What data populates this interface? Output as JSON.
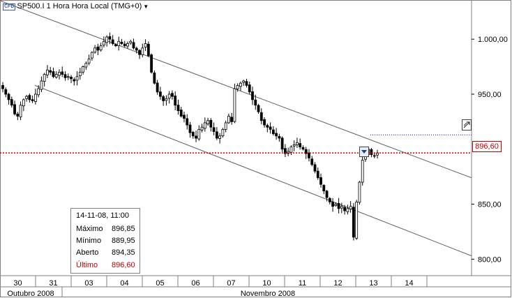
{
  "header": {
    "badge": "CFD",
    "instrument": "SP500.I",
    "period": "1 Hora",
    "timezone": "Hora Local (TMG+0)"
  },
  "last_price_tag": "896,60",
  "ohlc": {
    "datetime": "14-11-08, 11:00",
    "max_label": "Máximo",
    "max": "896,85",
    "min_label": "Mínimo",
    "min": "889,95",
    "open_label": "Aberto",
    "open": "894,35",
    "last_label": "Último",
    "last": "896,60"
  },
  "colors": {
    "last_price": "#c00000",
    "candles": "#000000",
    "channel": "#606060",
    "dotted_level": "#00008b"
  },
  "chart_data": {
    "type": "candlestick",
    "ylim": [
      785,
      1035
    ],
    "y_ticks": [
      {
        "value": 1000,
        "label": "1.000,00"
      },
      {
        "value": 950,
        "label": "950,00"
      },
      {
        "value": 850,
        "label": "850,00"
      },
      {
        "value": 800,
        "label": "800,00"
      }
    ],
    "x_days": [
      "30",
      "31",
      "03",
      "04",
      "05",
      "06",
      "07",
      "10",
      "11",
      "12",
      "13",
      "14"
    ],
    "x_months": [
      "Outubro 2008",
      "Novembro 2008"
    ],
    "last_price": 896.6,
    "dotted_level": 913,
    "grid": false,
    "channel": {
      "upper_start": 1035,
      "upper_end": 874,
      "lower_start": 958,
      "lower_end": 803
    },
    "closes": [
      955,
      950,
      945,
      940,
      932,
      930,
      940,
      945,
      948,
      945,
      944,
      950,
      955,
      962,
      968,
      972,
      970,
      966,
      968,
      970,
      968,
      965,
      966,
      964,
      962,
      966,
      970,
      975,
      978,
      982,
      988,
      992,
      990,
      994,
      998,
      1002,
      1000,
      996,
      994,
      998,
      996,
      994,
      996,
      998,
      992,
      990,
      986,
      992,
      996,
      985,
      970,
      960,
      952,
      948,
      944,
      946,
      950,
      948,
      940,
      935,
      930,
      928,
      922,
      915,
      912,
      910,
      918,
      920,
      924,
      926,
      920,
      916,
      910,
      912,
      918,
      924,
      930,
      925,
      955,
      958,
      960,
      962,
      958,
      952,
      945,
      940,
      934,
      926,
      922,
      920,
      918,
      914,
      912,
      910,
      900,
      896,
      898,
      902,
      904,
      906,
      902,
      900,
      896,
      892,
      886,
      880,
      874,
      868,
      862,
      856,
      852,
      848,
      850,
      846,
      848,
      844,
      846,
      848,
      820,
      852,
      870,
      890,
      896,
      900,
      895,
      894,
      896.6
    ]
  }
}
